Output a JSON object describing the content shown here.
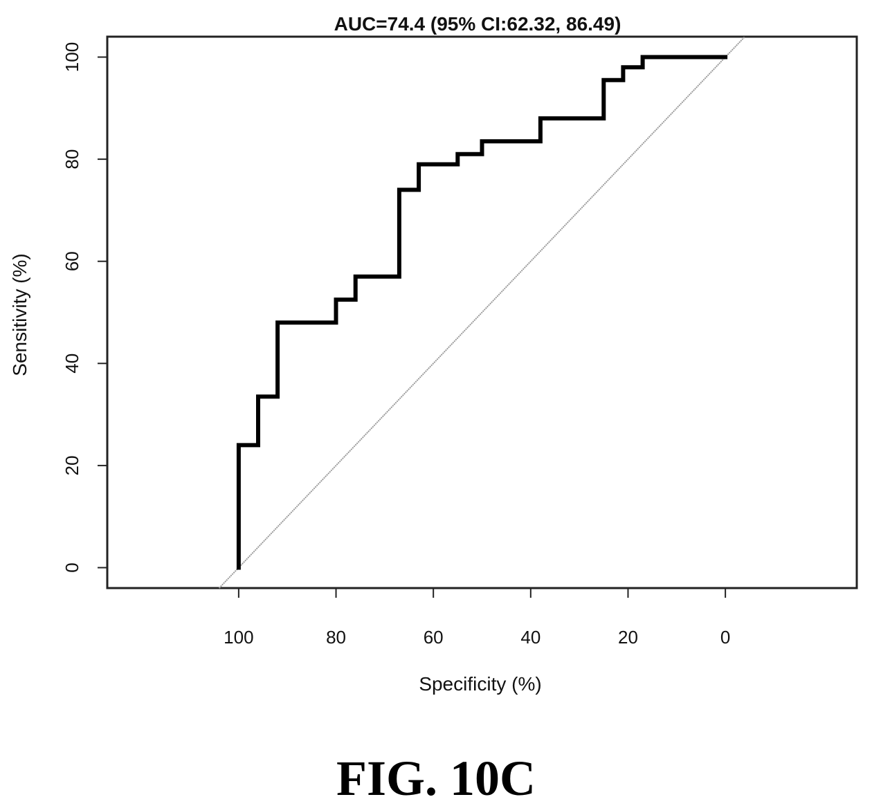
{
  "figure_caption": "FIG. 10C",
  "colors": {
    "roc_line": "#000000",
    "reference_line": "#9a9a9a",
    "frame": "#222222"
  },
  "chart_data": {
    "type": "line",
    "title": "AUC=74.4 (95% CI:62.32, 86.49)",
    "xlabel": "Specificity (%)",
    "ylabel": "Sensitivity (%)",
    "x_reversed": true,
    "xlim": [
      127,
      -27
    ],
    "ylim": [
      -4,
      104
    ],
    "x_ticks": [
      100,
      80,
      60,
      40,
      20,
      0
    ],
    "y_ticks": [
      0,
      20,
      40,
      60,
      80,
      100
    ],
    "grid": false,
    "series": [
      {
        "role": "roc",
        "x": [
          100,
          100,
          96,
          96,
          92,
          92,
          80,
          80,
          76,
          76,
          67,
          67,
          63,
          63,
          55,
          55,
          50,
          50,
          38,
          38,
          25,
          25,
          21,
          21,
          17,
          17,
          0
        ],
        "y": [
          0,
          24,
          24,
          33.5,
          33.5,
          48,
          48,
          52.5,
          52.5,
          57,
          57,
          74,
          74,
          79,
          79,
          81,
          81,
          83.5,
          83.5,
          88,
          88,
          95.5,
          95.5,
          98,
          98,
          100,
          100
        ]
      },
      {
        "role": "reference",
        "x": [
          104,
          -4
        ],
        "y": [
          -4,
          104
        ]
      }
    ]
  }
}
